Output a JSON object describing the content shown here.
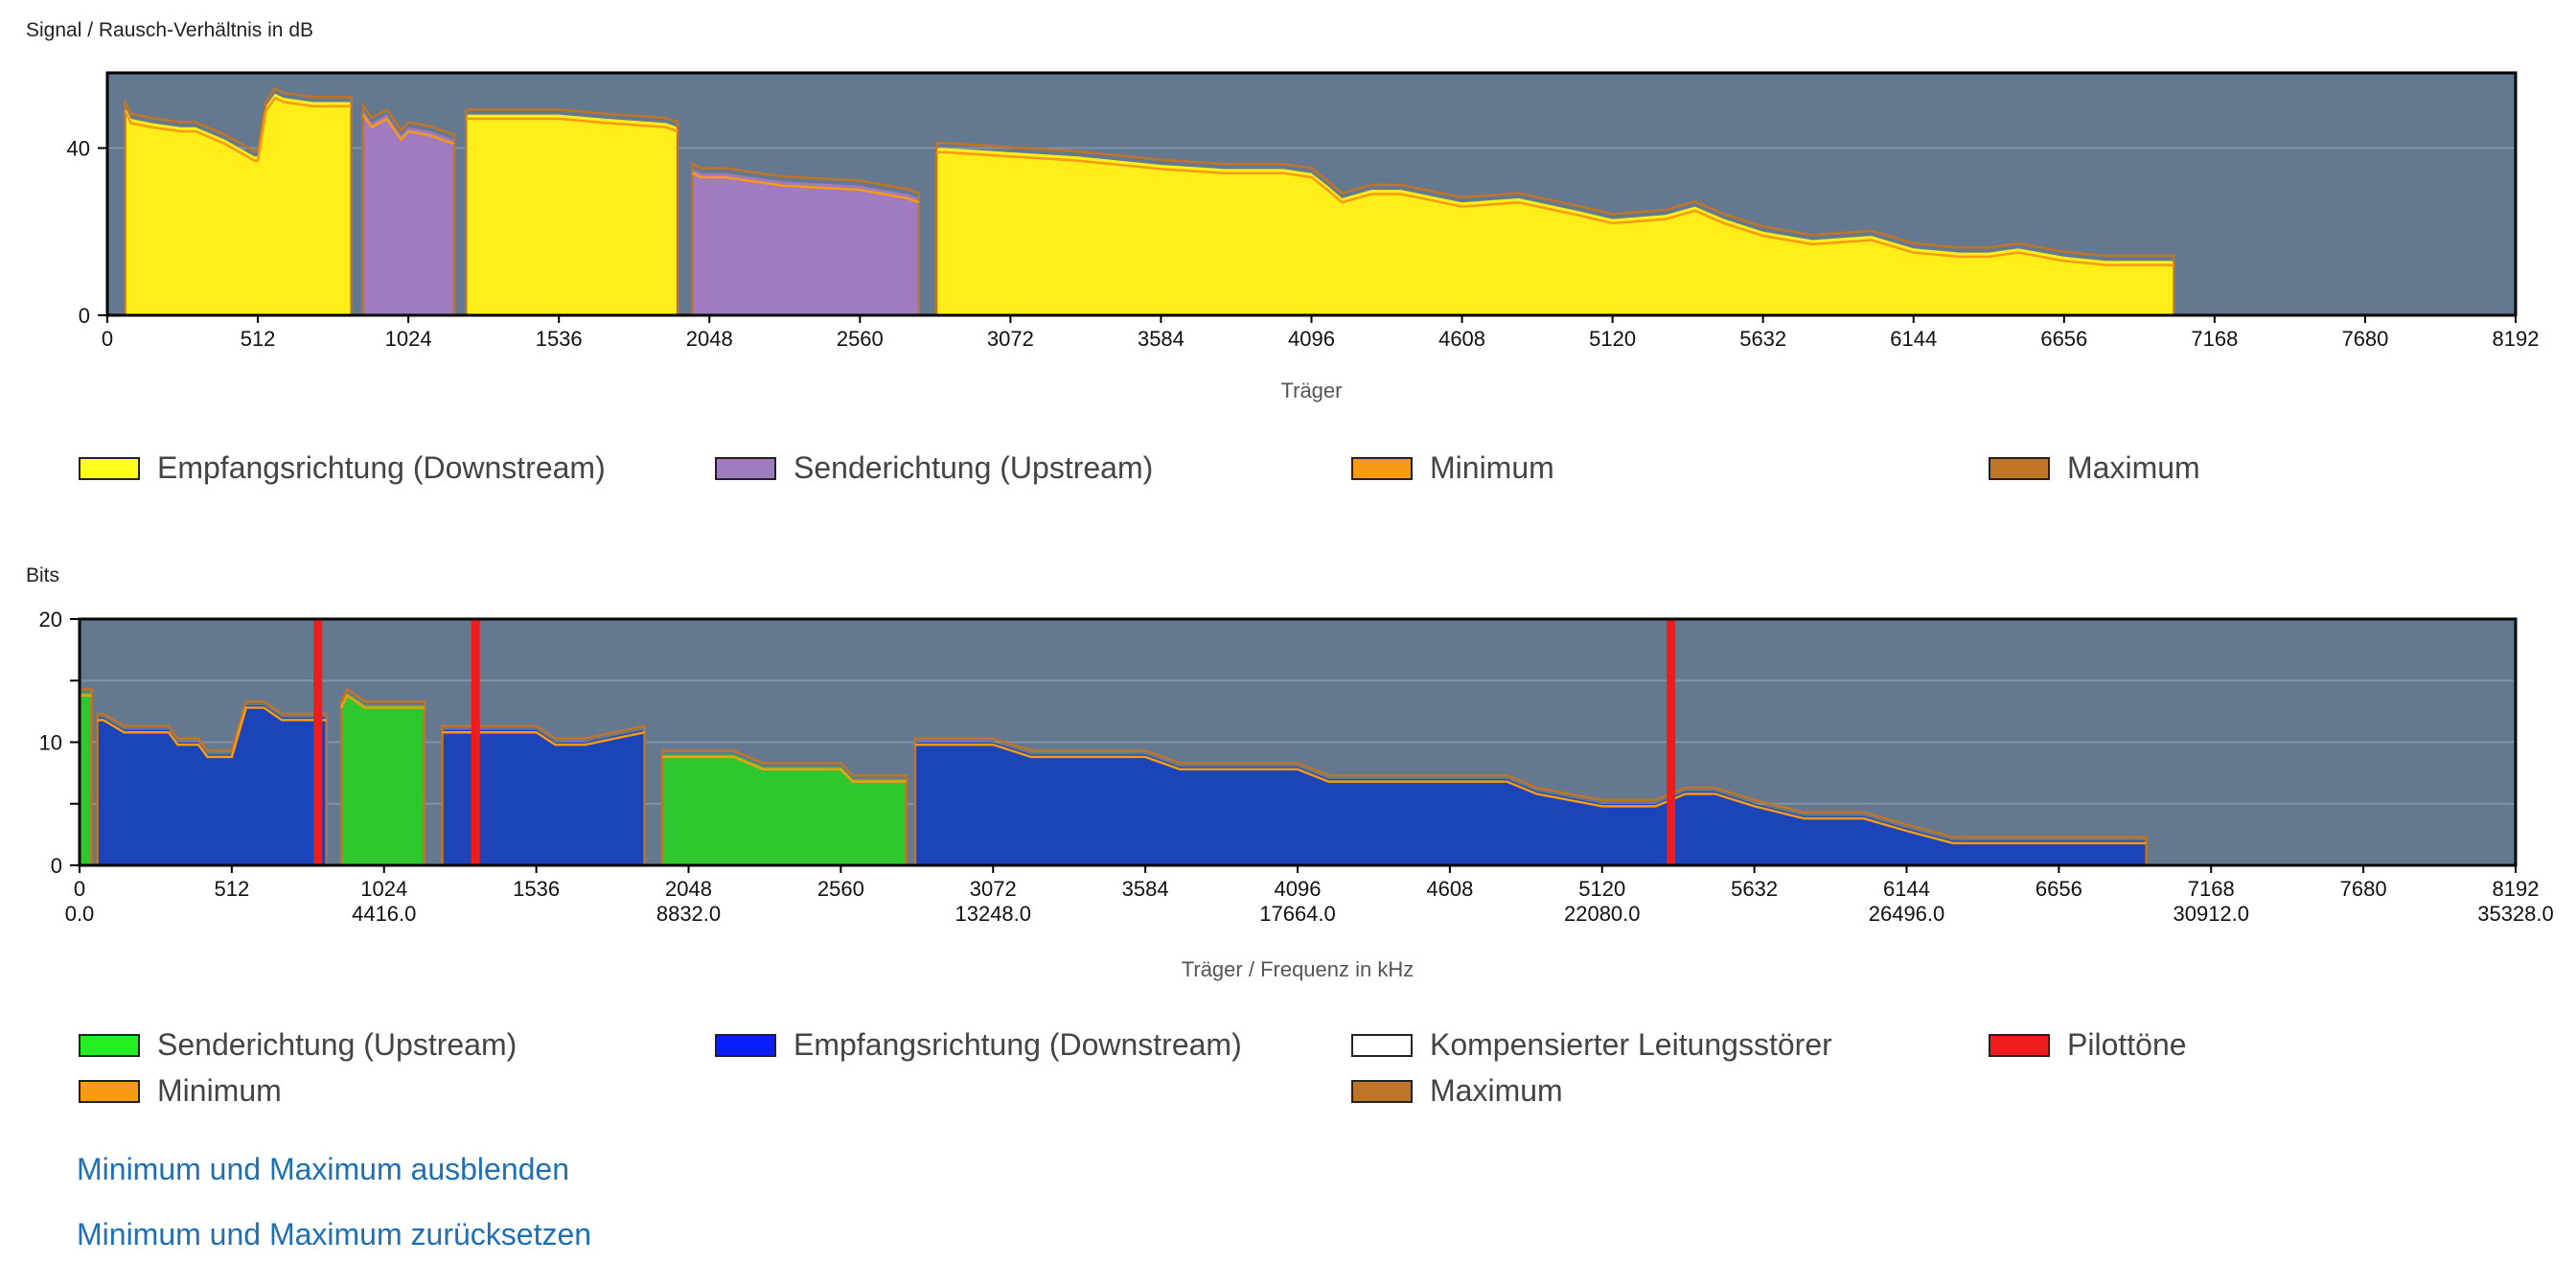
{
  "chart_data": [
    {
      "type": "area",
      "title": "Signal / Rausch-Verhältnis in dB",
      "xlabel": "Träger",
      "ylabel": "",
      "xlim": [
        0,
        8192
      ],
      "ylim": [
        0,
        58
      ],
      "xticks": [
        0,
        512,
        1024,
        1536,
        2048,
        2560,
        3072,
        3584,
        4096,
        4608,
        5120,
        5632,
        6144,
        6656,
        7168,
        7680,
        8192
      ],
      "yticks": [
        0,
        40
      ],
      "grid": "horizontal",
      "background": "#64798f",
      "series": [
        {
          "name": "Empfangsrichtung (Downstream)",
          "color": "#ffee1a",
          "kind": "area",
          "x": [
            60,
            80,
            150,
            250,
            300,
            400,
            450,
            500,
            512,
            540,
            570,
            600,
            700,
            800,
            830
          ],
          "y": [
            50,
            47,
            46,
            45,
            45,
            42,
            40,
            38,
            38,
            50,
            53,
            52,
            51,
            51,
            51
          ]
        },
        {
          "name": "Senderichtung (Upstream)",
          "color": "#a07bc0",
          "kind": "area",
          "x": [
            870,
            900,
            950,
            1000,
            1024,
            1100,
            1180
          ],
          "y": [
            49,
            46,
            48,
            43,
            45,
            44,
            42
          ]
        },
        {
          "name": "Empfangsrichtung (Downstream)",
          "color": "#ffee1a",
          "kind": "area",
          "x": [
            1220,
            1250,
            1400,
            1536,
            1700,
            1900,
            1940
          ],
          "y": [
            48,
            48,
            48,
            48,
            47,
            46,
            45
          ]
        },
        {
          "name": "Senderichtung (Upstream)",
          "color": "#a07bc0",
          "kind": "area",
          "x": [
            1990,
            2020,
            2100,
            2300,
            2560,
            2720,
            2760
          ],
          "y": [
            35,
            34,
            34,
            32,
            31,
            29,
            28
          ]
        },
        {
          "name": "Empfangsrichtung (Downstream)",
          "color": "#ffee1a",
          "kind": "area",
          "x": [
            2820,
            2850,
            3072,
            3300,
            3584,
            3800,
            4000,
            4096,
            4150,
            4200,
            4300,
            4400,
            4608,
            4800,
            5000,
            5120,
            5300,
            5400,
            5500,
            5632,
            5800,
            6000,
            6144,
            6300,
            6400,
            6500,
            6656,
            6800,
            6900,
            7030
          ],
          "y": [
            40,
            40,
            39,
            38,
            36,
            35,
            35,
            34,
            31,
            28,
            30,
            30,
            27,
            28,
            25,
            23,
            24,
            26,
            23,
            20,
            18,
            19,
            16,
            15,
            15,
            16,
            14,
            13,
            13,
            13
          ]
        }
      ],
      "limits": [
        {
          "name": "Minimum",
          "color": "#f89a12"
        },
        {
          "name": "Maximum",
          "color": "#c07428"
        }
      ]
    },
    {
      "type": "area",
      "title": "Bits",
      "xlabel": "Träger / Frequenz in kHz",
      "ylabel": "",
      "xlim": [
        0,
        8192
      ],
      "ylim": [
        0,
        20
      ],
      "xticks": [
        0,
        512,
        1024,
        1536,
        2048,
        2560,
        3072,
        3584,
        4096,
        4608,
        5120,
        5632,
        6144,
        6656,
        7168,
        7680,
        8192
      ],
      "xticks_freq": [
        "0.0",
        "",
        "4416.0",
        "",
        "8832.0",
        "",
        "13248.0",
        "",
        "17664.0",
        "",
        "22080.0",
        "",
        "26496.0",
        "",
        "30912.0",
        "",
        "35328.0"
      ],
      "yticks": [
        0,
        10,
        20
      ],
      "grid": "horizontal",
      "background": "#64798f",
      "series": [
        {
          "name": "Senderichtung (Upstream)",
          "color": "#2ec82e",
          "kind": "area",
          "x": [
            0,
            20,
            40
          ],
          "y": [
            14,
            14,
            14
          ]
        },
        {
          "name": "Empfangsrichtung (Downstream)",
          "color": "#1a44b8",
          "kind": "area",
          "x": [
            60,
            80,
            150,
            300,
            330,
            400,
            430,
            512,
            560,
            620,
            680,
            720,
            780,
            830
          ],
          "y": [
            12,
            12,
            11,
            11,
            10,
            10,
            9,
            9,
            13,
            13,
            12,
            12,
            12,
            12
          ]
        },
        {
          "name": "Senderichtung (Upstream)",
          "color": "#2ec82e",
          "kind": "area",
          "x": [
            880,
            900,
            960,
            1024,
            1100,
            1160
          ],
          "y": [
            13,
            14,
            13,
            13,
            13,
            13
          ]
        },
        {
          "name": "Empfangsrichtung (Downstream)",
          "color": "#1a44b8",
          "kind": "area",
          "x": [
            1220,
            1250,
            1400,
            1536,
            1600,
            1700,
            1900
          ],
          "y": [
            11,
            11,
            11,
            11,
            10,
            10,
            11
          ]
        },
        {
          "name": "Senderichtung (Upstream)",
          "color": "#2ec82e",
          "kind": "area",
          "x": [
            1960,
            2000,
            2200,
            2300,
            2560,
            2600,
            2780
          ],
          "y": [
            9,
            9,
            9,
            8,
            8,
            7,
            7
          ]
        },
        {
          "name": "Empfangsrichtung (Downstream)",
          "color": "#1a44b8",
          "kind": "area",
          "x": [
            2810,
            2840,
            3072,
            3200,
            3400,
            3584,
            3700,
            3800,
            4000,
            4096,
            4200,
            4300,
            4500,
            4608,
            4800,
            4900,
            5120,
            5300,
            5400,
            5500,
            5632,
            5800,
            6000,
            6144,
            6300,
            6400,
            6500,
            6656,
            6800,
            6900,
            6950
          ],
          "y": [
            10,
            10,
            10,
            9,
            9,
            9,
            8,
            8,
            8,
            8,
            7,
            7,
            7,
            7,
            7,
            6,
            5,
            5,
            6,
            6,
            5,
            4,
            4,
            3,
            2,
            2,
            2,
            2,
            2,
            2,
            2
          ]
        }
      ],
      "pilot_tones": {
        "name": "Pilottöne",
        "color": "#ee1c1c",
        "x": [
          800,
          1330,
          5350
        ]
      },
      "limits": [
        {
          "name": "Kompensierter Leitungsstörer",
          "color": "#ffffff"
        },
        {
          "name": "Minimum",
          "color": "#f89a12"
        },
        {
          "name": "Maximum",
          "color": "#c07428"
        }
      ]
    }
  ],
  "legend1": [
    {
      "label": "Empfangsrichtung (Downstream)",
      "color": "#ffff22"
    },
    {
      "label": "Senderichtung (Upstream)",
      "color": "#a07bc0"
    },
    {
      "label": "Minimum",
      "color": "#f89a12"
    },
    {
      "label": "Maximum",
      "color": "#c07428"
    }
  ],
  "legend2": [
    {
      "label": "Senderichtung (Upstream)",
      "color": "#22ee22"
    },
    {
      "label": "Empfangsrichtung (Downstream)",
      "color": "#0a1fff"
    },
    {
      "label": "Kompensierter Leitungsstörer",
      "color": "#ffffff"
    },
    {
      "label": "Pilottöne",
      "color": "#ee1c1c"
    },
    {
      "label": "Minimum",
      "color": "#f89a12"
    },
    {
      "label": "Maximum",
      "color": "#c07428"
    }
  ],
  "links": {
    "hide_minmax": "Minimum und Maximum ausblenden",
    "reset_minmax": "Minimum und Maximum zurücksetzen"
  }
}
